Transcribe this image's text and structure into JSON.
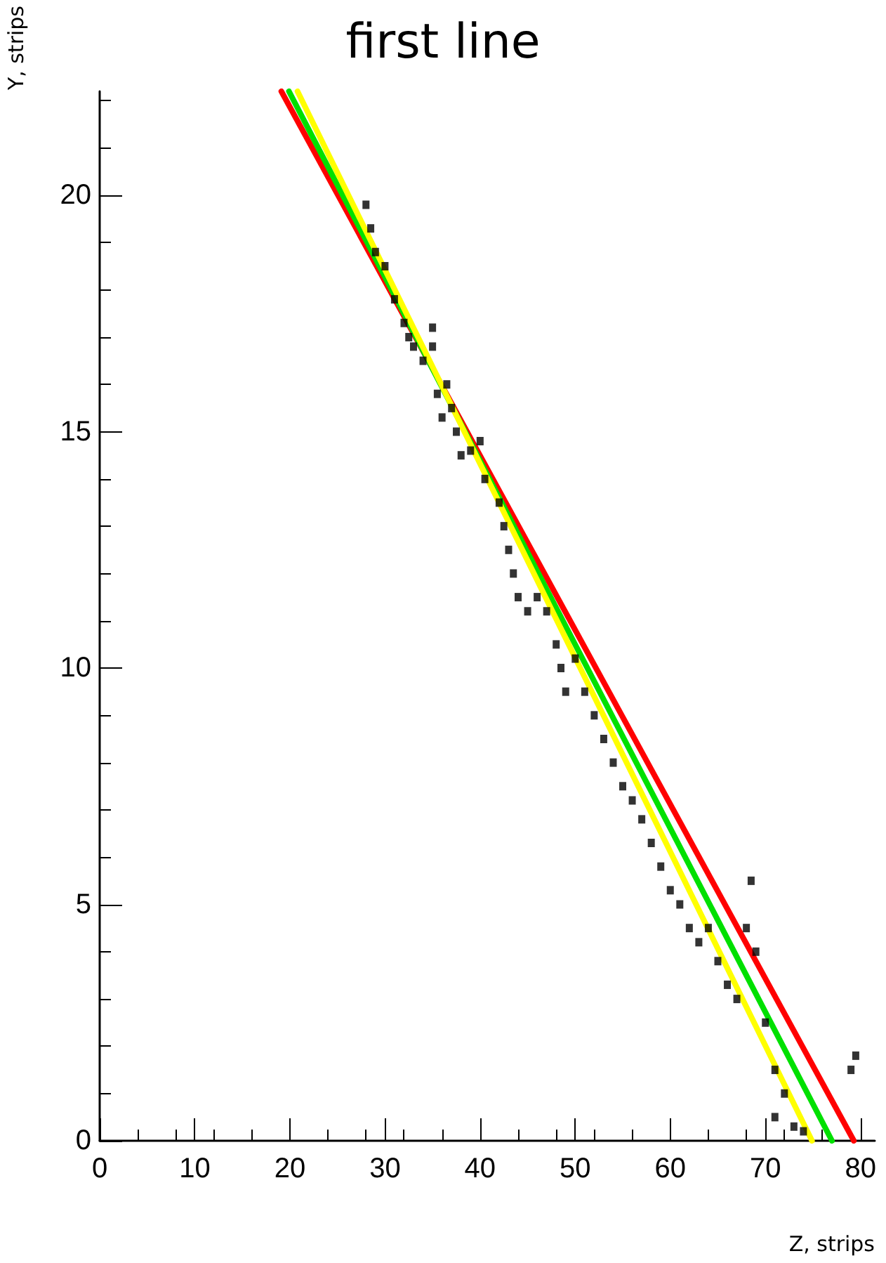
{
  "chart_data": {
    "type": "scatter",
    "title": "first line",
    "xlabel": "Z, strips",
    "ylabel": "Y, strips",
    "xlim": [
      0,
      81.5
    ],
    "ylim": [
      0,
      22.2
    ],
    "xticks": [
      0,
      10,
      20,
      30,
      40,
      50,
      60,
      70,
      80
    ],
    "yticks": [
      0,
      5,
      10,
      15,
      20
    ],
    "grid": false,
    "series": [
      {
        "color": "#000000",
        "marker": "square",
        "x": [
          28,
          28.5,
          29,
          30,
          31,
          32,
          32.5,
          33,
          34,
          35,
          35,
          35.5,
          36,
          36.5,
          37,
          37.5,
          38,
          39,
          40,
          40.5,
          42,
          42.5,
          43,
          43.5,
          44,
          45,
          46,
          47,
          48,
          48.5,
          49,
          50,
          51,
          52,
          53,
          54,
          55,
          56,
          57,
          58,
          59,
          60,
          61,
          62,
          63,
          64,
          65,
          66,
          67,
          68,
          68.5,
          69,
          70,
          71,
          71,
          72,
          73,
          74,
          79,
          79.5
        ],
        "values": [
          19.8,
          19.3,
          18.8,
          18.5,
          17.8,
          17.3,
          17,
          16.8,
          16.5,
          16.8,
          17.2,
          15.8,
          15.3,
          16,
          15.5,
          15,
          14.5,
          14.6,
          14.8,
          14,
          13.5,
          13,
          12.5,
          12,
          11.5,
          11.2,
          11.5,
          11.2,
          10.5,
          10,
          9.5,
          10.2,
          9.5,
          9,
          8.5,
          8,
          7.5,
          7.2,
          6.8,
          6.3,
          5.8,
          5.3,
          5,
          4.5,
          4.2,
          4.5,
          3.8,
          3.3,
          3,
          4.5,
          5.5,
          4,
          2.5,
          1.5,
          0.5,
          1,
          0.3,
          0.2,
          1.5,
          1.8
        ]
      },
      {
        "type": "line",
        "color": "#ff0000",
        "x": [
          19.1,
          79.3
        ],
        "values": [
          22.2,
          0
        ]
      },
      {
        "type": "line",
        "color": "#00e000",
        "x": [
          19.9,
          77.0
        ],
        "values": [
          22.2,
          0
        ]
      },
      {
        "type": "line",
        "color": "#ffff00",
        "x": [
          20.8,
          74.9
        ],
        "values": [
          22.2,
          0
        ]
      }
    ]
  }
}
